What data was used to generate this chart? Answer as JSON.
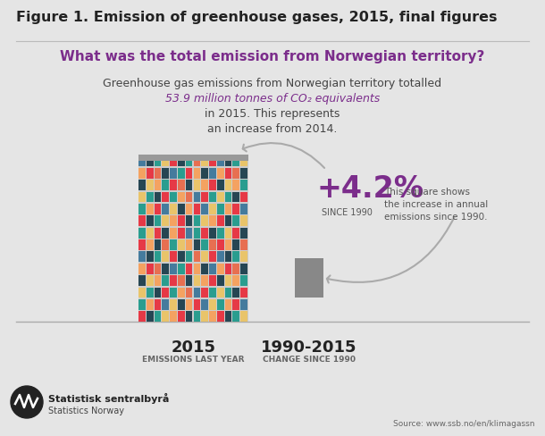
{
  "title": "Figure 1. Emission of greenhouse gases, 2015, final figures",
  "subtitle": "What was the total emission from Norwegian territory?",
  "body_text_1": "Greenhouse gas emissions from Norwegian territory totalled",
  "body_highlight": "53.9 million tonnes of CO₂ equivalents",
  "body_text_2_a": "in 2015. This represents",
  "body_text_2_b": "an increase from 2014.",
  "big_percent": "+4.2%",
  "since_label": "SINCE 1990",
  "label_2015": "2015",
  "sublabel_2015": "EMISSIONS LAST YEAR",
  "label_1990": "1990-2015",
  "sublabel_1990": "CHANGE SINCE 1990",
  "annotation": "This square shows\nthe increase in annual\nemissions since 1990.",
  "source": "Source: www.ssb.no/en/klimagassn",
  "logo_text1": "Statistisk sentralbyrå",
  "logo_text2": "Statistics Norway",
  "bg_color": "#e5e5e5",
  "title_color": "#222222",
  "subtitle_color": "#7b2d8b",
  "highlight_color": "#7b2d8b",
  "body_color": "#444444",
  "percent_color": "#7b2d8b",
  "label_color": "#222222",
  "annotation_color": "#555555",
  "gray_square_color": "#888888",
  "colors_grid": [
    [
      "#e63946",
      "#264653",
      "#2a9d8f",
      "#e9c46a",
      "#f4a261",
      "#e63946",
      "#264653",
      "#2a9d8f",
      "#e9c46a",
      "#f4a261"
    ],
    [
      "#2a9d8f",
      "#f4a261",
      "#e63946",
      "#457b9d",
      "#e9c46a",
      "#264653",
      "#f4a261",
      "#e63946",
      "#457b9d",
      "#e9c46a"
    ],
    [
      "#e9c46a",
      "#2a9d8f",
      "#264653",
      "#e63946",
      "#2a9d8f",
      "#f4a261",
      "#e76f51",
      "#457b9d",
      "#e63946",
      "#2a9d8f"
    ],
    [
      "#264653",
      "#e9c46a",
      "#f4a261",
      "#2a9d8f",
      "#e63946",
      "#e76f51",
      "#264653",
      "#e9c46a",
      "#f4a261",
      "#e63946"
    ],
    [
      "#f4a261",
      "#e63946",
      "#e76f51",
      "#264653",
      "#457b9d",
      "#2a9d8f",
      "#e63946",
      "#f4a261",
      "#264653",
      "#457b9d"
    ],
    [
      "#457b9d",
      "#264653",
      "#2a9d8f",
      "#e9c46a",
      "#e63946",
      "#264653",
      "#2a9d8f",
      "#e76f51",
      "#e9c46a",
      "#e63946"
    ],
    [
      "#e63946",
      "#f4a261",
      "#264653",
      "#e76f51",
      "#2a9d8f",
      "#e9c46a",
      "#f4a261",
      "#264653",
      "#2a9d8f",
      "#e76f51"
    ],
    [
      "#2a9d8f",
      "#e9c46a",
      "#e63946",
      "#264653",
      "#f4a261",
      "#e63946",
      "#457b9d",
      "#2a9d8f",
      "#e63946",
      "#264653"
    ]
  ]
}
